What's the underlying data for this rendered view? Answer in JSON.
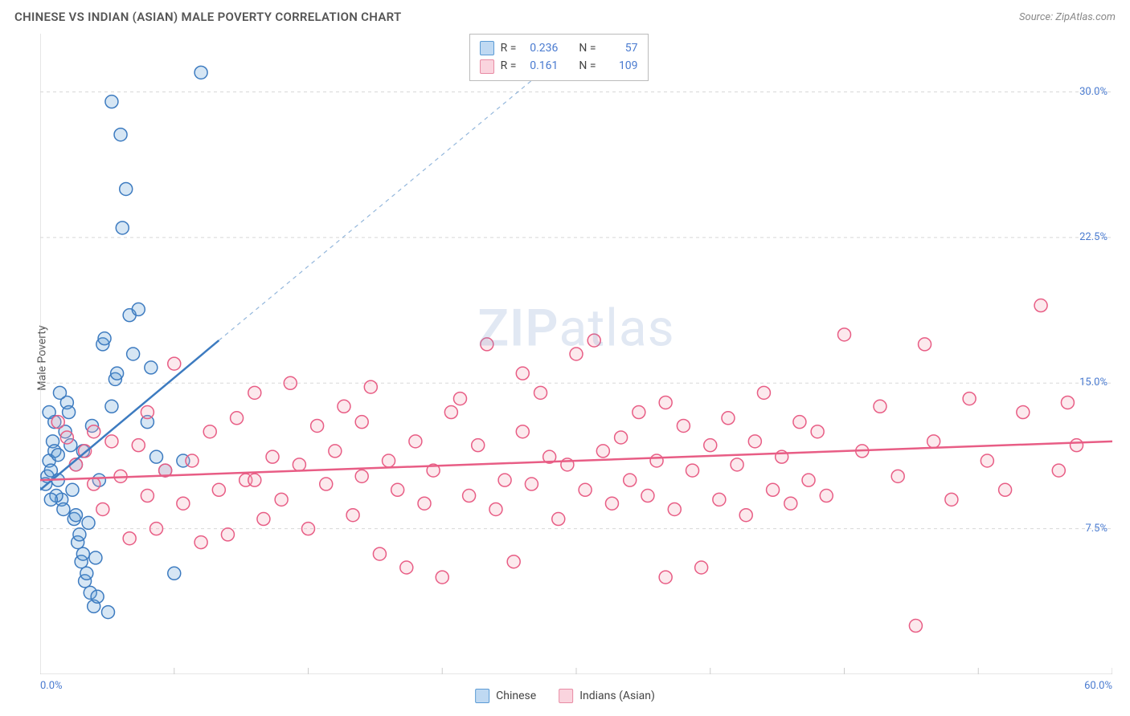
{
  "title": "CHINESE VS INDIAN (ASIAN) MALE POVERTY CORRELATION CHART",
  "source": "Source: ZipAtlas.com",
  "y_axis_label": "Male Poverty",
  "x_min_label": "0.0%",
  "x_max_label": "60.0%",
  "watermark_z": "ZIP",
  "watermark_a": "atlas",
  "chart": {
    "type": "scatter",
    "xlim": [
      0,
      60
    ],
    "ylim": [
      0,
      33
    ],
    "background_color": "#ffffff",
    "grid_color": "#d8d8d8",
    "grid_dash": "4,4",
    "y_ticks": [
      7.5,
      15.0,
      22.5,
      30.0
    ],
    "y_tick_labels": [
      "7.5%",
      "15.0%",
      "22.5%",
      "30.0%"
    ],
    "x_ticks": [
      0,
      7.5,
      15,
      22.5,
      30,
      37.5,
      45,
      52.5,
      60
    ],
    "axis_color": "#cccccc",
    "marker_radius": 8,
    "marker_stroke_width": 1.5,
    "marker_fill_opacity": 0.25,
    "series": [
      {
        "name": "Chinese",
        "color": "#5b9bd5",
        "stroke": "#3d7bc0",
        "regression": {
          "x1": 0,
          "y1": 9.5,
          "x2": 10,
          "y2": 17.2,
          "dashed_beyond_x": 10,
          "dashed_to_x": 30,
          "dashed_to_y": 32.5
        },
        "points": [
          [
            0.3,
            9.8
          ],
          [
            0.4,
            10.2
          ],
          [
            0.5,
            11.0
          ],
          [
            0.6,
            10.5
          ],
          [
            0.7,
            12.0
          ],
          [
            0.8,
            11.5
          ],
          [
            0.8,
            13.0
          ],
          [
            1.0,
            10.0
          ],
          [
            1.2,
            9.0
          ],
          [
            1.3,
            8.5
          ],
          [
            1.4,
            12.5
          ],
          [
            1.5,
            14.0
          ],
          [
            1.6,
            13.5
          ],
          [
            1.7,
            11.8
          ],
          [
            1.8,
            9.5
          ],
          [
            1.9,
            8.0
          ],
          [
            2.0,
            10.8
          ],
          [
            2.1,
            6.8
          ],
          [
            2.2,
            7.2
          ],
          [
            2.3,
            5.8
          ],
          [
            2.4,
            6.2
          ],
          [
            2.5,
            4.8
          ],
          [
            2.6,
            5.2
          ],
          [
            2.7,
            7.8
          ],
          [
            2.8,
            4.2
          ],
          [
            3.0,
            3.5
          ],
          [
            3.2,
            4.0
          ],
          [
            3.5,
            17.0
          ],
          [
            3.6,
            17.3
          ],
          [
            3.8,
            3.2
          ],
          [
            4.0,
            29.5
          ],
          [
            4.2,
            15.2
          ],
          [
            4.3,
            15.5
          ],
          [
            4.5,
            27.8
          ],
          [
            4.8,
            25.0
          ],
          [
            4.0,
            13.8
          ],
          [
            5.0,
            18.5
          ],
          [
            5.2,
            16.5
          ],
          [
            5.5,
            18.8
          ],
          [
            6.0,
            13.0
          ],
          [
            6.2,
            15.8
          ],
          [
            6.5,
            11.2
          ],
          [
            7.0,
            10.5
          ],
          [
            7.5,
            5.2
          ],
          [
            8.0,
            11.0
          ],
          [
            9.0,
            31.0
          ],
          [
            2.9,
            12.8
          ],
          [
            3.3,
            10.0
          ],
          [
            1.1,
            14.5
          ],
          [
            4.6,
            23.0
          ],
          [
            0.9,
            9.2
          ],
          [
            1.0,
            11.3
          ],
          [
            2.0,
            8.2
          ],
          [
            2.4,
            11.5
          ],
          [
            3.1,
            6.0
          ],
          [
            0.5,
            13.5
          ],
          [
            0.6,
            9.0
          ]
        ]
      },
      {
        "name": "Indians (Asian)",
        "color": "#f4a6b8",
        "stroke": "#e85d85",
        "regression": {
          "x1": 0,
          "y1": 10.0,
          "x2": 60,
          "y2": 12.0
        },
        "points": [
          [
            1.0,
            13.0
          ],
          [
            1.5,
            12.2
          ],
          [
            2.0,
            10.8
          ],
          [
            2.5,
            11.5
          ],
          [
            3.0,
            9.8
          ],
          [
            3.5,
            8.5
          ],
          [
            4.0,
            12.0
          ],
          [
            4.5,
            10.2
          ],
          [
            5.0,
            7.0
          ],
          [
            5.5,
            11.8
          ],
          [
            6.0,
            9.2
          ],
          [
            6.5,
            7.5
          ],
          [
            7.0,
            10.5
          ],
          [
            7.5,
            16.0
          ],
          [
            8.0,
            8.8
          ],
          [
            8.5,
            11.0
          ],
          [
            9.0,
            6.8
          ],
          [
            9.5,
            12.5
          ],
          [
            10.0,
            9.5
          ],
          [
            10.5,
            7.2
          ],
          [
            11.0,
            13.2
          ],
          [
            11.5,
            10.0
          ],
          [
            12.0,
            14.5
          ],
          [
            12.5,
            8.0
          ],
          [
            13.0,
            11.2
          ],
          [
            13.5,
            9.0
          ],
          [
            14.0,
            15.0
          ],
          [
            14.5,
            10.8
          ],
          [
            15.0,
            7.5
          ],
          [
            15.5,
            12.8
          ],
          [
            16.0,
            9.8
          ],
          [
            16.5,
            11.5
          ],
          [
            17.0,
            13.8
          ],
          [
            17.5,
            8.2
          ],
          [
            18.0,
            10.2
          ],
          [
            18.5,
            14.8
          ],
          [
            19.0,
            6.2
          ],
          [
            19.5,
            11.0
          ],
          [
            20.0,
            9.5
          ],
          [
            20.5,
            5.5
          ],
          [
            21.0,
            12.0
          ],
          [
            21.5,
            8.8
          ],
          [
            22.0,
            10.5
          ],
          [
            22.5,
            5.0
          ],
          [
            23.0,
            13.5
          ],
          [
            23.5,
            14.2
          ],
          [
            24.0,
            9.2
          ],
          [
            24.5,
            11.8
          ],
          [
            25.0,
            17.0
          ],
          [
            25.5,
            8.5
          ],
          [
            26.0,
            10.0
          ],
          [
            26.5,
            5.8
          ],
          [
            27.0,
            12.5
          ],
          [
            27.5,
            9.8
          ],
          [
            28.0,
            14.5
          ],
          [
            28.5,
            11.2
          ],
          [
            29.0,
            8.0
          ],
          [
            29.5,
            10.8
          ],
          [
            30.0,
            16.5
          ],
          [
            30.5,
            9.5
          ],
          [
            31.0,
            17.2
          ],
          [
            31.5,
            11.5
          ],
          [
            32.0,
            8.8
          ],
          [
            32.5,
            12.2
          ],
          [
            33.0,
            10.0
          ],
          [
            33.5,
            13.5
          ],
          [
            34.0,
            9.2
          ],
          [
            34.5,
            11.0
          ],
          [
            35.0,
            14.0
          ],
          [
            35.5,
            8.5
          ],
          [
            36.0,
            12.8
          ],
          [
            36.5,
            10.5
          ],
          [
            37.0,
            5.5
          ],
          [
            37.5,
            11.8
          ],
          [
            38.0,
            9.0
          ],
          [
            38.5,
            13.2
          ],
          [
            39.0,
            10.8
          ],
          [
            39.5,
            8.2
          ],
          [
            40.0,
            12.0
          ],
          [
            40.5,
            14.5
          ],
          [
            41.0,
            9.5
          ],
          [
            41.5,
            11.2
          ],
          [
            42.0,
            8.8
          ],
          [
            42.5,
            13.0
          ],
          [
            43.0,
            10.0
          ],
          [
            43.5,
            12.5
          ],
          [
            44.0,
            9.2
          ],
          [
            45.0,
            17.5
          ],
          [
            46.0,
            11.5
          ],
          [
            47.0,
            13.8
          ],
          [
            48.0,
            10.2
          ],
          [
            49.0,
            2.5
          ],
          [
            50.0,
            12.0
          ],
          [
            51.0,
            9.0
          ],
          [
            52.0,
            14.2
          ],
          [
            53.0,
            11.0
          ],
          [
            54.0,
            9.5
          ],
          [
            55.0,
            13.5
          ],
          [
            56.0,
            19.0
          ],
          [
            57.0,
            10.5
          ],
          [
            57.5,
            14.0
          ],
          [
            58.0,
            11.8
          ],
          [
            49.5,
            17.0
          ],
          [
            35.0,
            5.0
          ],
          [
            27.0,
            15.5
          ],
          [
            18.0,
            13.0
          ],
          [
            12.0,
            10.0
          ],
          [
            6.0,
            13.5
          ],
          [
            3.0,
            12.5
          ]
        ]
      }
    ]
  },
  "legend": {
    "items": [
      {
        "label": "Chinese",
        "fill": "#bfd9f2",
        "stroke": "#5b9bd5"
      },
      {
        "label": "Indians (Asian)",
        "fill": "#fad4de",
        "stroke": "#e88ba4"
      }
    ]
  },
  "stats_box": {
    "rows": [
      {
        "fill": "#bfd9f2",
        "stroke": "#5b9bd5",
        "r_label": "R =",
        "r": "0.236",
        "n_label": "N =",
        "n": "57"
      },
      {
        "fill": "#fad4de",
        "stroke": "#e88ba4",
        "r_label": "R =",
        "r": "0.161",
        "n_label": "N =",
        "n": "109"
      }
    ]
  }
}
